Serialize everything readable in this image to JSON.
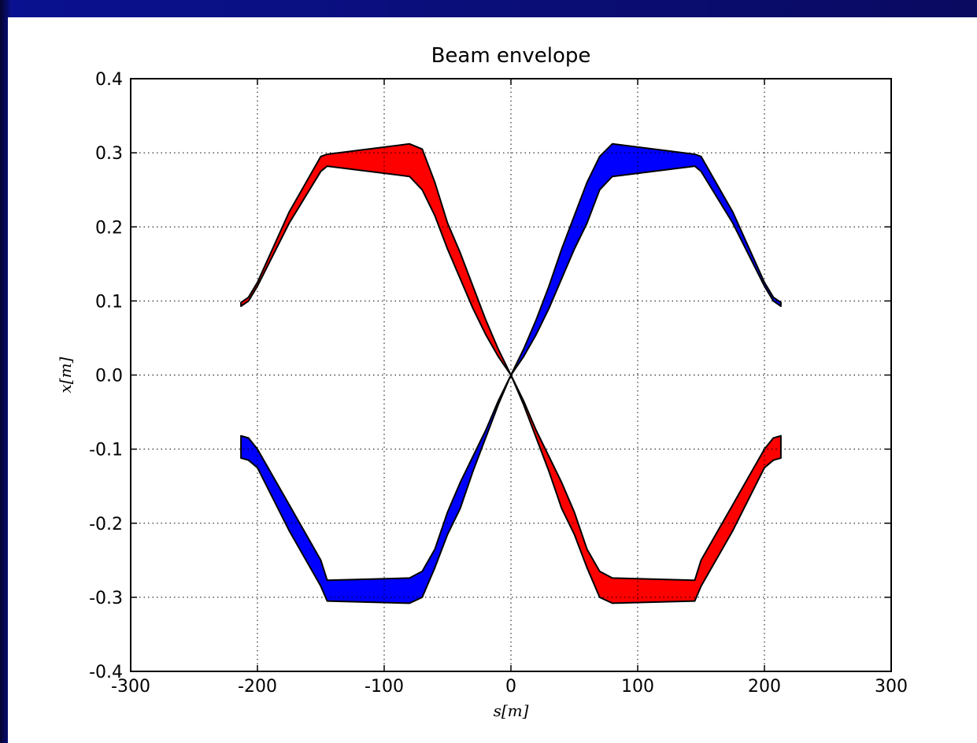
{
  "chart_data": {
    "type": "area",
    "title": "Beam envelope",
    "xlabel": "s[m]",
    "ylabel": "x[m]",
    "xlim": [
      -300,
      300
    ],
    "ylim": [
      -0.4,
      0.4
    ],
    "xticks": [
      -300,
      -200,
      -100,
      0,
      100,
      200,
      300
    ],
    "xtick_labels": [
      "-300",
      "-200",
      "-100",
      "0",
      "100",
      "200",
      "300"
    ],
    "yticks": [
      -0.4,
      -0.3,
      -0.2,
      -0.1,
      0.0,
      0.1,
      0.2,
      0.3,
      0.4
    ],
    "ytick_labels": [
      "-0.4",
      "-0.3",
      "-0.2",
      "-0.1",
      "0.0",
      "0.1",
      "0.2",
      "0.3",
      "0.4"
    ],
    "grid": true,
    "legend": "none",
    "series": [
      {
        "color": "#ff0000",
        "s": [
          -213,
          -207,
          -200,
          -175,
          -150,
          -145,
          -80,
          -70,
          -60,
          -50,
          -40,
          -30,
          -20,
          -10,
          0
        ],
        "upper": [
          0.098,
          0.105,
          0.125,
          0.22,
          0.295,
          0.298,
          0.312,
          0.305,
          0.26,
          0.205,
          0.165,
          0.12,
          0.075,
          0.035,
          0.0
        ],
        "lower": [
          0.093,
          0.1,
          0.12,
          0.205,
          0.275,
          0.282,
          0.268,
          0.25,
          0.215,
          0.17,
          0.13,
          0.09,
          0.055,
          0.025,
          0.0
        ]
      },
      {
        "color": "#0000ff",
        "s": [
          0,
          10,
          20,
          30,
          40,
          50,
          60,
          70,
          80,
          145,
          150,
          175,
          200,
          207,
          213
        ],
        "upper": [
          0.0,
          0.035,
          0.075,
          0.12,
          0.17,
          0.215,
          0.26,
          0.295,
          0.312,
          0.298,
          0.295,
          0.22,
          0.125,
          0.105,
          0.098
        ],
        "lower": [
          0.0,
          0.025,
          0.055,
          0.09,
          0.13,
          0.17,
          0.205,
          0.25,
          0.268,
          0.282,
          0.275,
          0.205,
          0.12,
          0.1,
          0.093
        ]
      },
      {
        "color": "#0000ff",
        "s": [
          -213,
          -207,
          -200,
          -175,
          -150,
          -145,
          -80,
          -70,
          -60,
          -50,
          -40,
          -30,
          -20,
          -10,
          0
        ],
        "upper": [
          -0.082,
          -0.085,
          -0.1,
          -0.175,
          -0.25,
          -0.277,
          -0.274,
          -0.265,
          -0.235,
          -0.185,
          -0.145,
          -0.11,
          -0.075,
          -0.035,
          0.0
        ],
        "lower": [
          -0.112,
          -0.115,
          -0.125,
          -0.21,
          -0.285,
          -0.305,
          -0.308,
          -0.3,
          -0.26,
          -0.215,
          -0.18,
          -0.13,
          -0.085,
          -0.04,
          0.0
        ]
      },
      {
        "color": "#ff0000",
        "s": [
          0,
          10,
          20,
          30,
          40,
          50,
          60,
          70,
          80,
          145,
          150,
          175,
          200,
          207,
          213
        ],
        "upper": [
          0.0,
          -0.035,
          -0.075,
          -0.11,
          -0.145,
          -0.185,
          -0.235,
          -0.265,
          -0.274,
          -0.277,
          -0.25,
          -0.175,
          -0.1,
          -0.085,
          -0.082
        ],
        "lower": [
          0.0,
          -0.04,
          -0.085,
          -0.13,
          -0.18,
          -0.215,
          -0.26,
          -0.3,
          -0.308,
          -0.305,
          -0.285,
          -0.21,
          -0.125,
          -0.115,
          -0.112
        ]
      }
    ]
  }
}
